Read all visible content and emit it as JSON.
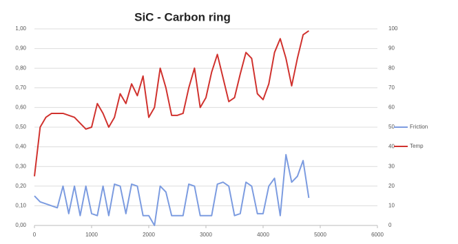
{
  "chart_data": {
    "type": "line",
    "title": "SiC - Carbon ring",
    "x": [
      0,
      100,
      200,
      300,
      400,
      500,
      600,
      700,
      800,
      900,
      1000,
      1100,
      1200,
      1300,
      1400,
      1500,
      1600,
      1700,
      1800,
      1900,
      2000,
      2100,
      2200,
      2300,
      2400,
      2500,
      2600,
      2700,
      2800,
      2900,
      3000,
      3100,
      3200,
      3300,
      3400,
      3500,
      3600,
      3700,
      3800,
      3900,
      4000,
      4100,
      4200,
      4300,
      4400,
      4500,
      4600,
      4700,
      4800
    ],
    "series": [
      {
        "name": "Friction",
        "color": "#7b9be0",
        "values": [
          0.15,
          0.12,
          0.11,
          0.1,
          0.09,
          0.2,
          0.06,
          0.2,
          0.05,
          0.2,
          0.06,
          0.05,
          0.2,
          0.05,
          0.21,
          0.2,
          0.06,
          0.21,
          0.2,
          0.05,
          0.05,
          0.0,
          0.2,
          0.17,
          0.05,
          0.05,
          0.05,
          0.21,
          0.2,
          0.05,
          0.05,
          0.05,
          0.21,
          0.22,
          0.2,
          0.05,
          0.06,
          0.22,
          0.2,
          0.06,
          0.06,
          0.2,
          0.24,
          0.05,
          0.36,
          0.22,
          0.25,
          0.33,
          0.14
        ]
      },
      {
        "name": "Temp",
        "color": "#d0312d",
        "axis": "y2",
        "values": [
          25,
          50,
          55,
          57,
          57,
          57,
          56,
          55,
          52,
          49,
          50,
          62,
          57,
          50,
          55,
          67,
          62,
          72,
          66,
          76,
          55,
          60,
          80,
          70,
          56,
          56,
          57,
          70,
          80,
          60,
          65,
          78,
          87,
          75,
          63,
          65,
          77,
          88,
          85,
          67,
          64,
          72,
          88,
          95,
          85,
          71,
          85,
          97,
          99
        ]
      }
    ],
    "xlim": [
      0,
      6000
    ],
    "xticks": [
      0,
      1000,
      2000,
      3000,
      4000,
      5000,
      6000
    ],
    "ylim": [
      0,
      1
    ],
    "yticks": [
      {
        "value": 0,
        "label": "0,00"
      },
      {
        "value": 0.1,
        "label": "0,10"
      },
      {
        "value": 0.2,
        "label": "0,20"
      },
      {
        "value": 0.3,
        "label": "0,30"
      },
      {
        "value": 0.4,
        "label": "0,40"
      },
      {
        "value": 0.5,
        "label": "0,50"
      },
      {
        "value": 0.6,
        "label": "0,60"
      },
      {
        "value": 0.7,
        "label": "0,70"
      },
      {
        "value": 0.8,
        "label": "0,80"
      },
      {
        "value": 0.9,
        "label": "0,90"
      },
      {
        "value": 1,
        "label": "1,00"
      }
    ],
    "y2lim": [
      0,
      100
    ],
    "y2ticks": [
      0,
      10,
      20,
      30,
      40,
      50,
      60,
      70,
      80,
      90,
      100
    ],
    "grid": true,
    "legend": "right"
  }
}
